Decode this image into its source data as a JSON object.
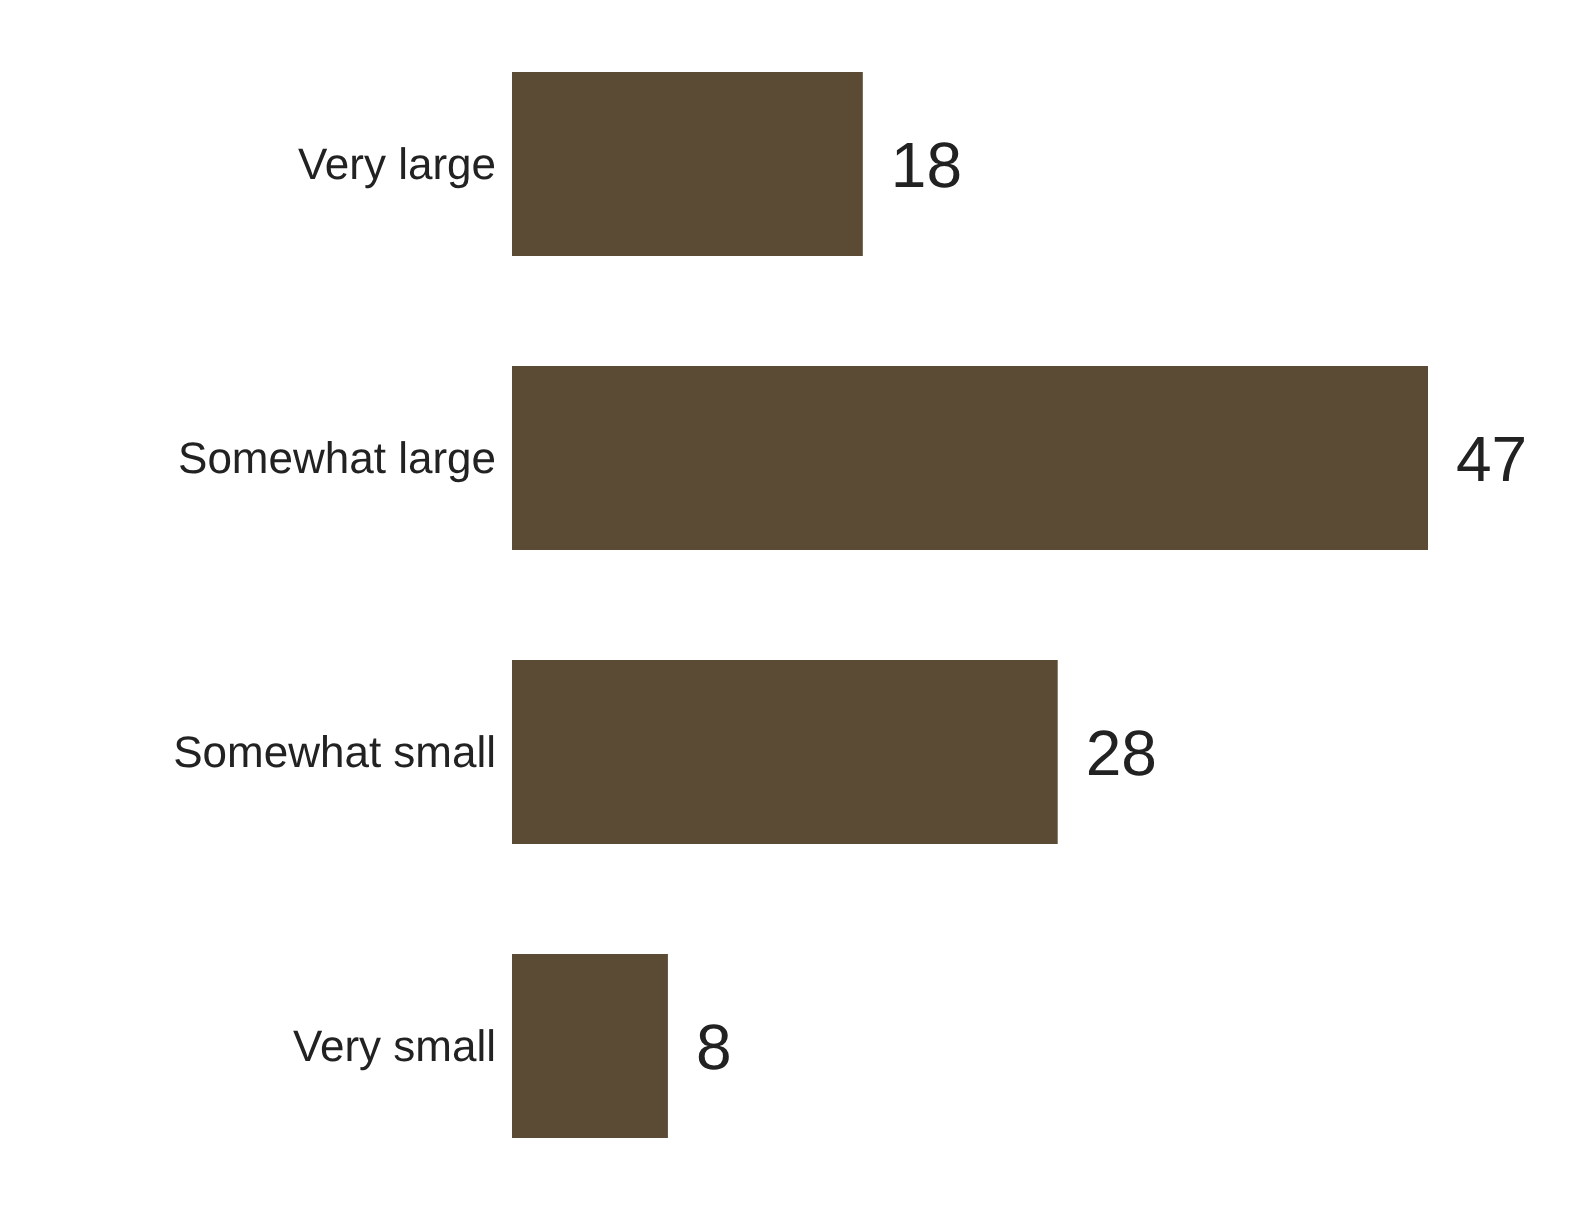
{
  "chart_data": {
    "type": "bar",
    "orientation": "horizontal",
    "categories": [
      "Very large",
      "Somewhat large",
      "Somewhat small",
      "Very small"
    ],
    "values": [
      18,
      47,
      28,
      8
    ],
    "color": "#5b4b35",
    "data_labels": true,
    "grid": false,
    "legend": false
  }
}
